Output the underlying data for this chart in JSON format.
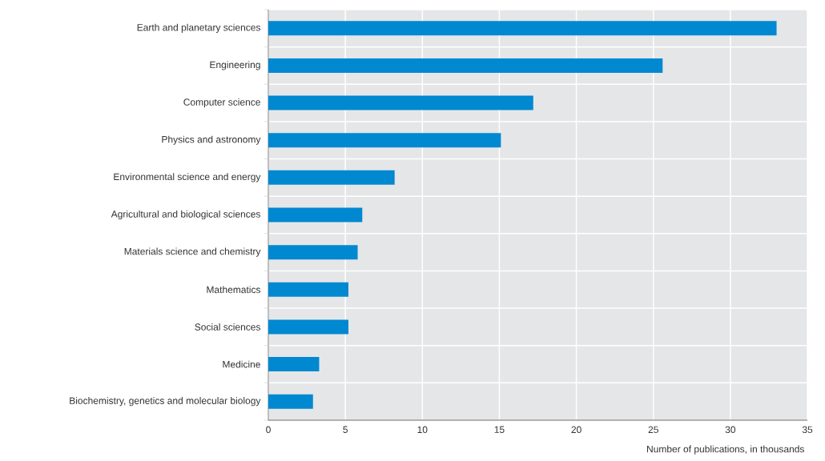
{
  "chart_data": {
    "type": "bar",
    "orientation": "horizontal",
    "categories": [
      "Earth and planetary sciences",
      "Engineering",
      "Computer science",
      "Physics and astronomy",
      "Environmental science and energy",
      "Agricultural and biological sciences",
      "Materials science and chemistry",
      "Mathematics",
      "Social sciences",
      "Medicine",
      "Biochemistry, genetics and molecular biology"
    ],
    "values": [
      33.0,
      25.6,
      17.2,
      15.1,
      8.2,
      6.1,
      5.8,
      5.2,
      5.2,
      3.3,
      2.9
    ],
    "color": "#0088d1",
    "xlabel": "Number of publications, in thousands",
    "xlim": [
      0,
      35
    ],
    "xticks": [
      0,
      5,
      10,
      15,
      20,
      25,
      30,
      35
    ],
    "grid": true
  }
}
